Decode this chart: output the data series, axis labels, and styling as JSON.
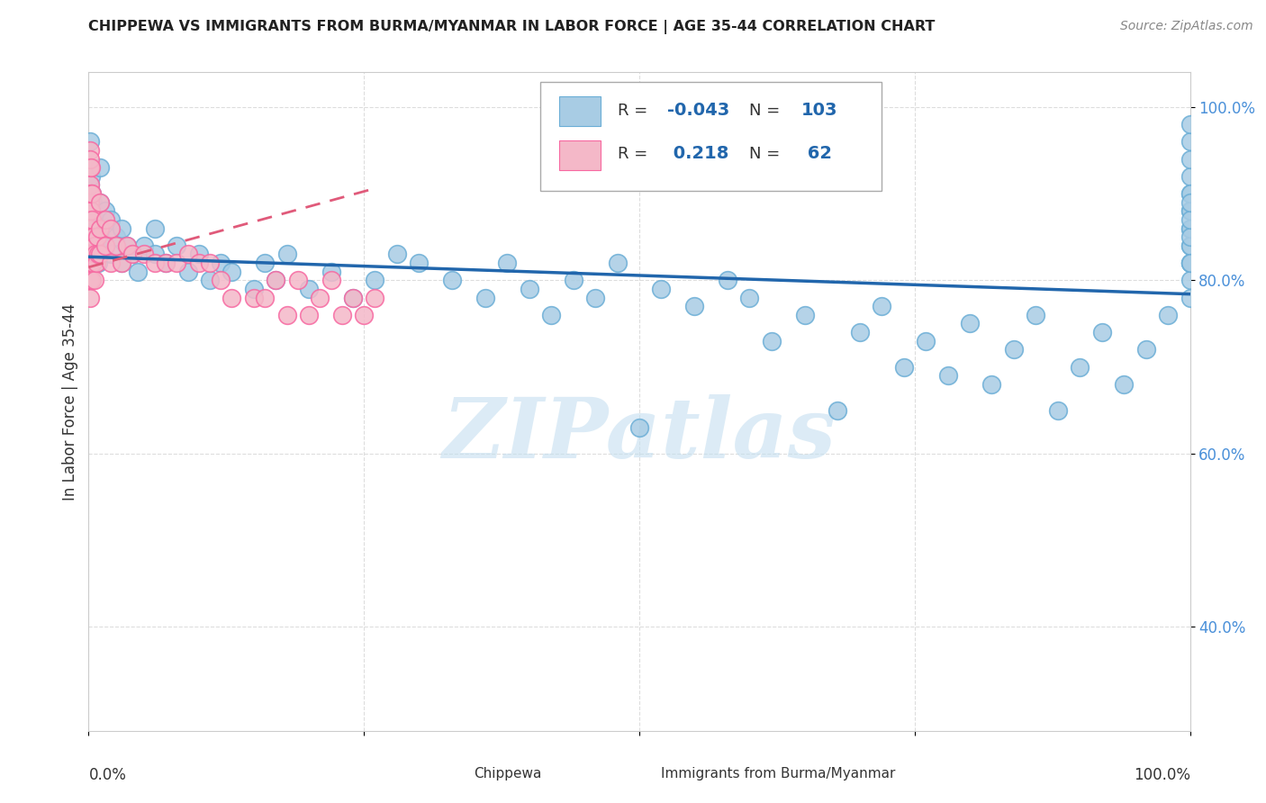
{
  "title": "CHIPPEWA VS IMMIGRANTS FROM BURMA/MYANMAR IN LABOR FORCE | AGE 35-44 CORRELATION CHART",
  "source": "Source: ZipAtlas.com",
  "ylabel": "In Labor Force | Age 35-44",
  "watermark": "ZIPatlas",
  "blue_color": "#a8cce4",
  "blue_edge_color": "#6baed6",
  "pink_color": "#f4b8c8",
  "pink_edge_color": "#f768a1",
  "blue_line_color": "#2166ac",
  "pink_line_color": "#e05a7a",
  "tick_color": "#4a90d9",
  "grid_color": "#dddddd",
  "title_color": "#222222",
  "source_color": "#888888",
  "watermark_color": "#c5dff0",
  "xlim": [
    0,
    1.0
  ],
  "ylim": [
    0.28,
    1.04
  ],
  "yticks": [
    0.4,
    0.6,
    0.8,
    1.0
  ],
  "ytick_labels": [
    "40.0%",
    "60.0%",
    "80.0%",
    "100.0%"
  ],
  "chip_blue_intercept": 0.827,
  "chip_blue_slope": -0.043,
  "burma_pink_intercept": 0.815,
  "burma_pink_slope": 0.35,
  "chip_x": [
    0.001,
    0.001,
    0.001,
    0.001,
    0.001,
    0.002,
    0.002,
    0.002,
    0.003,
    0.003,
    0.003,
    0.004,
    0.004,
    0.005,
    0.005,
    0.006,
    0.007,
    0.008,
    0.009,
    0.01,
    0.01,
    0.01,
    0.015,
    0.015,
    0.02,
    0.02,
    0.025,
    0.03,
    0.03,
    0.035,
    0.04,
    0.045,
    0.05,
    0.06,
    0.06,
    0.07,
    0.08,
    0.09,
    0.1,
    0.11,
    0.12,
    0.13,
    0.15,
    0.16,
    0.17,
    0.18,
    0.2,
    0.22,
    0.24,
    0.26,
    0.28,
    0.3,
    0.33,
    0.36,
    0.38,
    0.4,
    0.42,
    0.44,
    0.46,
    0.48,
    0.5,
    0.52,
    0.55,
    0.58,
    0.6,
    0.62,
    0.65,
    0.68,
    0.7,
    0.72,
    0.74,
    0.76,
    0.78,
    0.8,
    0.82,
    0.84,
    0.86,
    0.88,
    0.9,
    0.92,
    0.94,
    0.96,
    0.98,
    1.0,
    1.0,
    1.0,
    1.0,
    1.0,
    1.0,
    1.0,
    1.0,
    1.0,
    1.0,
    1.0,
    1.0,
    1.0,
    1.0,
    1.0,
    1.0,
    1.0,
    1.0,
    1.0,
    1.0
  ],
  "chip_y": [
    0.83,
    0.86,
    0.91,
    0.93,
    0.96,
    0.84,
    0.88,
    0.92,
    0.82,
    0.87,
    0.9,
    0.85,
    0.89,
    0.83,
    0.87,
    0.85,
    0.86,
    0.84,
    0.82,
    0.85,
    0.89,
    0.93,
    0.84,
    0.88,
    0.83,
    0.87,
    0.85,
    0.82,
    0.86,
    0.84,
    0.83,
    0.81,
    0.84,
    0.83,
    0.86,
    0.82,
    0.84,
    0.81,
    0.83,
    0.8,
    0.82,
    0.81,
    0.79,
    0.82,
    0.8,
    0.83,
    0.79,
    0.81,
    0.78,
    0.8,
    0.83,
    0.82,
    0.8,
    0.78,
    0.82,
    0.79,
    0.76,
    0.8,
    0.78,
    0.82,
    0.63,
    0.79,
    0.77,
    0.8,
    0.78,
    0.73,
    0.76,
    0.65,
    0.74,
    0.77,
    0.7,
    0.73,
    0.69,
    0.75,
    0.68,
    0.72,
    0.76,
    0.65,
    0.7,
    0.74,
    0.68,
    0.72,
    0.76,
    0.82,
    0.86,
    0.84,
    0.88,
    0.9,
    0.92,
    0.94,
    0.96,
    0.98,
    0.82,
    0.84,
    0.86,
    0.88,
    0.9,
    0.8,
    0.78,
    0.82,
    0.85,
    0.87,
    0.89
  ],
  "burma_x": [
    0.001,
    0.001,
    0.001,
    0.001,
    0.001,
    0.001,
    0.001,
    0.001,
    0.001,
    0.001,
    0.001,
    0.001,
    0.001,
    0.002,
    0.002,
    0.002,
    0.002,
    0.002,
    0.003,
    0.003,
    0.003,
    0.003,
    0.004,
    0.004,
    0.005,
    0.005,
    0.006,
    0.007,
    0.008,
    0.009,
    0.01,
    0.01,
    0.01,
    0.015,
    0.015,
    0.02,
    0.02,
    0.025,
    0.03,
    0.035,
    0.04,
    0.05,
    0.06,
    0.07,
    0.08,
    0.09,
    0.1,
    0.11,
    0.12,
    0.13,
    0.15,
    0.16,
    0.17,
    0.18,
    0.19,
    0.2,
    0.21,
    0.22,
    0.23,
    0.24,
    0.25,
    0.26
  ],
  "burma_y": [
    0.82,
    0.85,
    0.88,
    0.9,
    0.93,
    0.95,
    0.78,
    0.8,
    0.83,
    0.86,
    0.89,
    0.91,
    0.94,
    0.82,
    0.85,
    0.88,
    0.9,
    0.93,
    0.8,
    0.83,
    0.87,
    0.9,
    0.82,
    0.85,
    0.8,
    0.84,
    0.83,
    0.82,
    0.85,
    0.83,
    0.83,
    0.86,
    0.89,
    0.84,
    0.87,
    0.82,
    0.86,
    0.84,
    0.82,
    0.84,
    0.83,
    0.83,
    0.82,
    0.82,
    0.82,
    0.83,
    0.82,
    0.82,
    0.8,
    0.78,
    0.78,
    0.78,
    0.8,
    0.76,
    0.8,
    0.76,
    0.78,
    0.8,
    0.76,
    0.78,
    0.76,
    0.78
  ]
}
